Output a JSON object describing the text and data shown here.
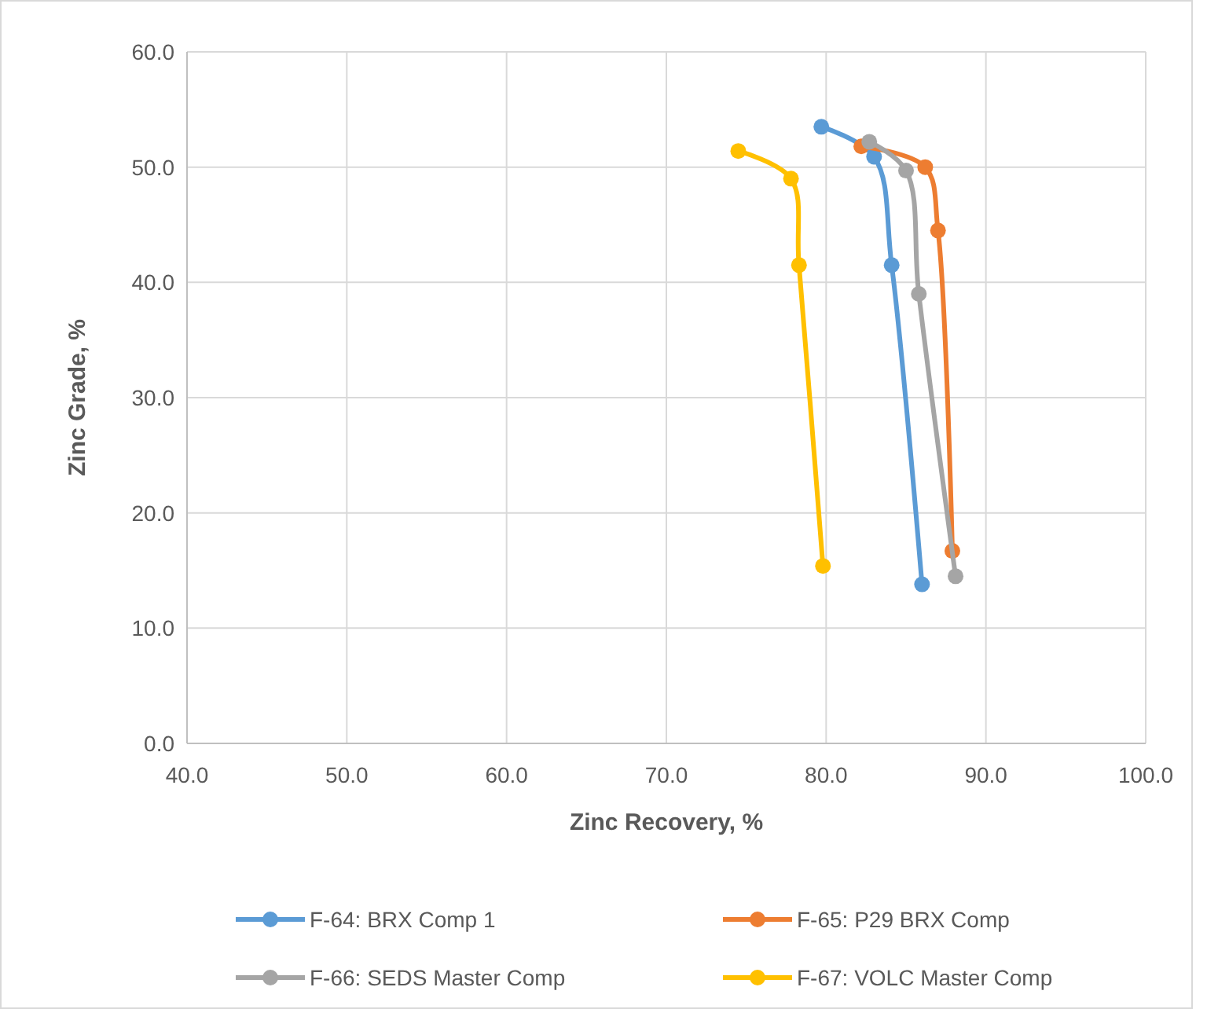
{
  "chart_data": {
    "type": "line",
    "xlabel": "Zinc Recovery, %",
    "ylabel": "Zinc Grade, %",
    "xlim": [
      40,
      100
    ],
    "xticks": [
      {
        "value": 40,
        "label": "40.0"
      },
      {
        "value": 50,
        "label": "50.0"
      },
      {
        "value": 60,
        "label": "60.0"
      },
      {
        "value": 70,
        "label": "70.0"
      },
      {
        "value": 80,
        "label": "80.0"
      },
      {
        "value": 90,
        "label": "90.0"
      },
      {
        "value": 100,
        "label": "100.0"
      }
    ],
    "ylim": [
      0,
      60
    ],
    "yticks": [
      {
        "value": 0,
        "label": "0.0"
      },
      {
        "value": 10,
        "label": "10.0"
      },
      {
        "value": 20,
        "label": "20.0"
      },
      {
        "value": 30,
        "label": "30.0"
      },
      {
        "value": 40,
        "label": "40.0"
      },
      {
        "value": 50,
        "label": "50.0"
      },
      {
        "value": 60,
        "label": "60.0"
      }
    ],
    "grid": true,
    "legend": "bottom",
    "marker": "circle",
    "series": [
      {
        "name": "F-64: BRX Comp 1",
        "color": "#5b9bd5",
        "x": [
          79.7,
          83.0,
          84.1,
          86.0
        ],
        "values": [
          53.5,
          50.9,
          41.5,
          13.8
        ]
      },
      {
        "name": "F-65: P29 BRX Comp",
        "color": "#ed7d31",
        "x": [
          82.2,
          86.2,
          87.0,
          87.9
        ],
        "values": [
          51.8,
          50.0,
          44.5,
          16.7
        ]
      },
      {
        "name": "F-66: SEDS Master Comp",
        "color": "#a5a5a5",
        "x": [
          82.7,
          85.0,
          85.8,
          88.1
        ],
        "values": [
          52.2,
          49.7,
          39.0,
          14.5
        ]
      },
      {
        "name": "F-67: VOLC Master Comp",
        "color": "#ffc000",
        "x": [
          74.5,
          77.8,
          78.3,
          79.8
        ],
        "values": [
          51.4,
          49.0,
          41.5,
          15.4
        ]
      }
    ]
  }
}
